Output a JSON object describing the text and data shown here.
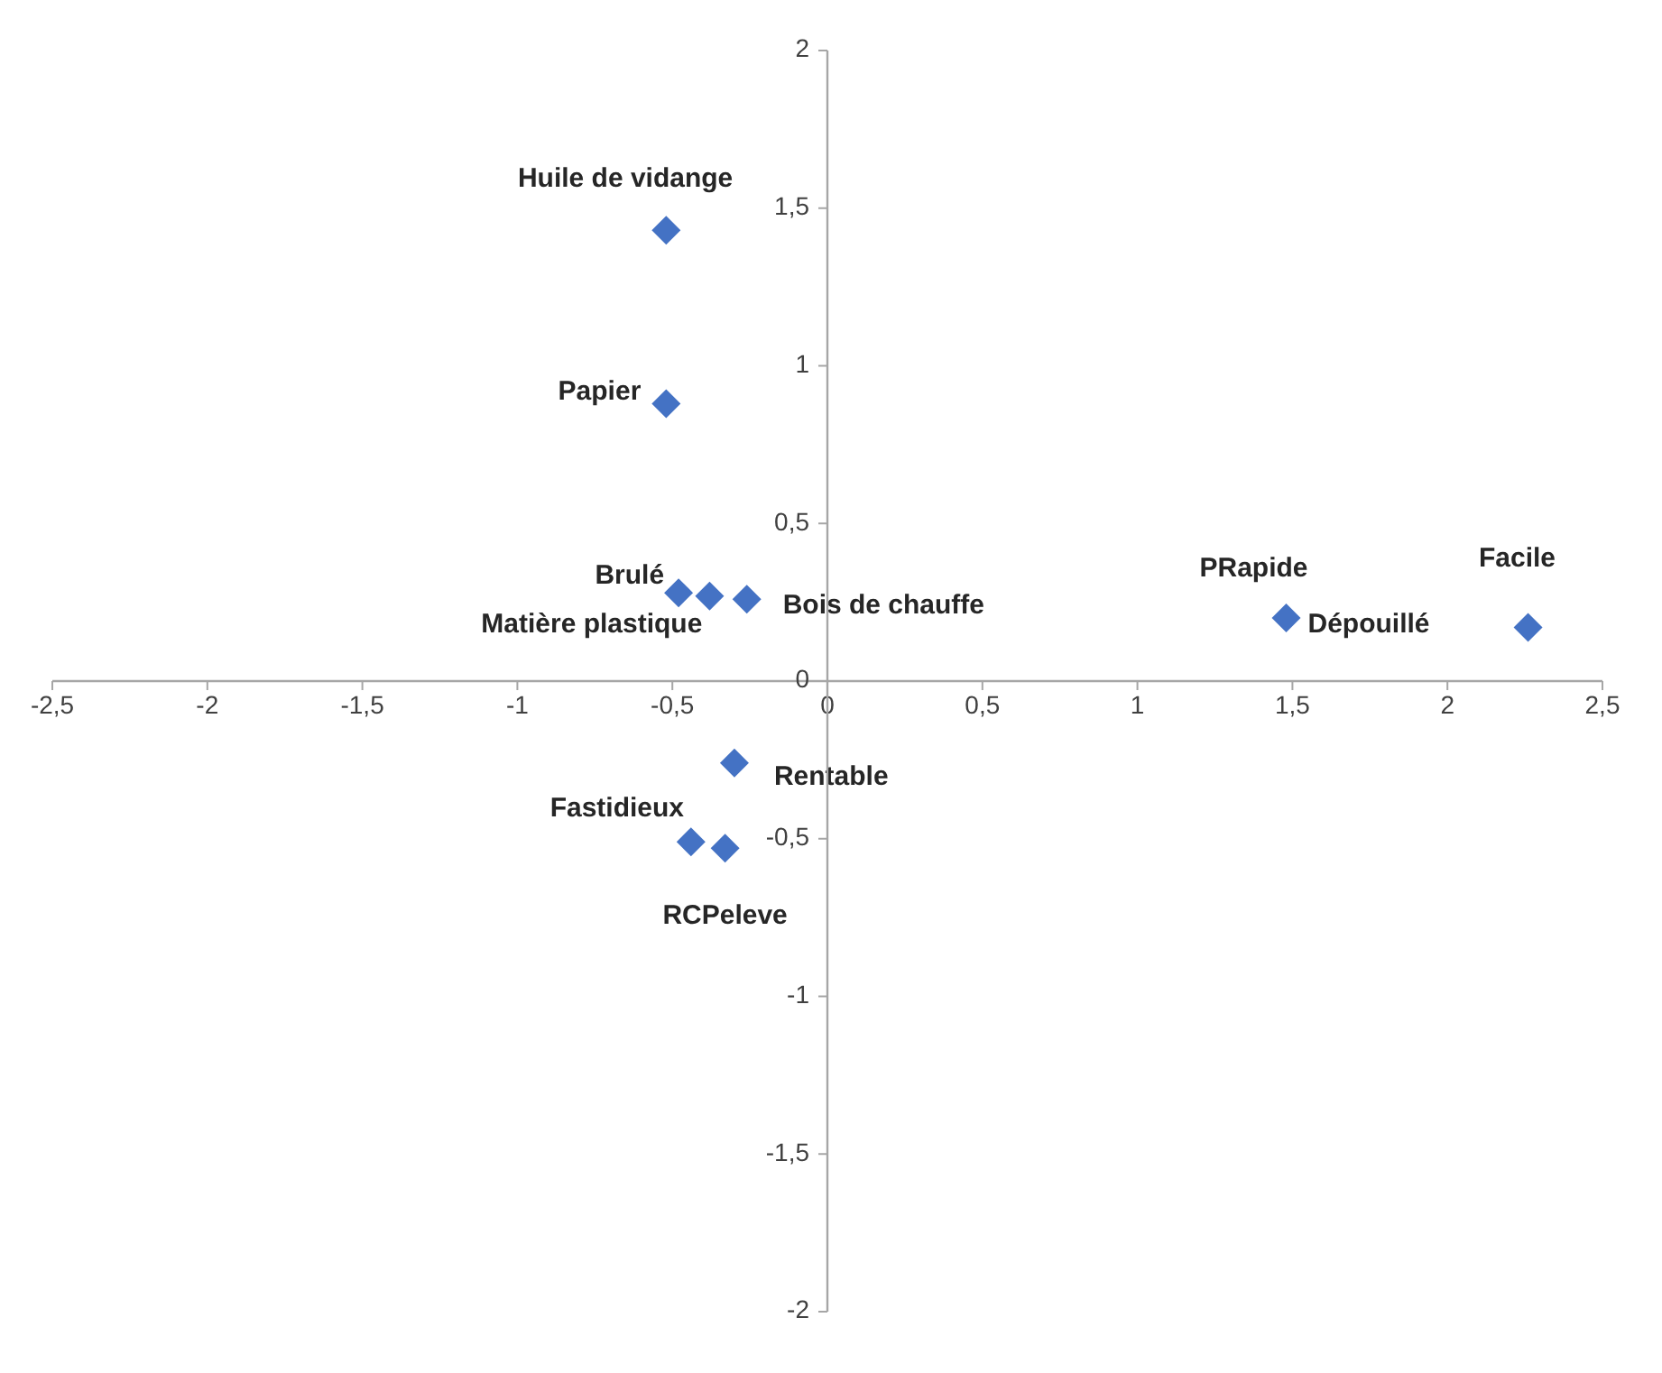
{
  "chart_data": {
    "type": "scatter",
    "x": [
      -0.52,
      -0.52,
      -0.48,
      -0.38,
      -0.26,
      1.48,
      2.26,
      -0.3,
      -0.44,
      -0.33
    ],
    "series": [
      {
        "color": "#4472c4",
        "values": [
          1.43,
          0.88,
          0.28,
          0.27,
          0.26,
          0.2,
          0.17,
          -0.26,
          -0.51,
          -0.53
        ]
      }
    ],
    "marker": "diamond",
    "xlim": [
      -2.5,
      2.5
    ],
    "xticks": [
      {
        "value": -2.5,
        "label": "-2,5"
      },
      -2,
      {
        "value": -1.5,
        "label": "-1,5"
      },
      -1,
      {
        "value": -0.5,
        "label": "-0,5"
      },
      0,
      {
        "value": 0.5,
        "label": "0,5"
      },
      1,
      {
        "value": 1.5,
        "label": "1,5"
      },
      2,
      {
        "value": 2.5,
        "label": "2,5"
      }
    ],
    "ylim": [
      -2,
      2
    ],
    "yticks": [
      -2,
      {
        "value": -1.5,
        "label": "-1,5"
      },
      -1,
      {
        "value": -0.5,
        "label": "-0,5"
      },
      0,
      {
        "value": 0.5,
        "label": "0,5"
      },
      1,
      {
        "value": 1.5,
        "label": "1,5"
      },
      2
    ],
    "grid": false,
    "legend": false,
    "annotations": [
      {
        "text": "Huile de vidange",
        "x": -0.52,
        "y": 1.43
      },
      {
        "text": "Papier",
        "x": -0.52,
        "y": 0.88
      },
      {
        "text": "Brulé",
        "x": -0.48,
        "y": 0.28
      },
      {
        "text": "Matière plastique",
        "x": -0.38,
        "y": 0.27
      },
      {
        "text": "Bois de chauffe",
        "x": -0.26,
        "y": 0.26
      },
      {
        "text": "PRapide",
        "x": 1.48,
        "y": 0.2
      },
      {
        "text": "Dépouillé",
        "x": 1.48,
        "y": 0.2
      },
      {
        "text": "Facile",
        "x": 2.26,
        "y": 0.17
      },
      {
        "text": "Rentable",
        "x": -0.3,
        "y": -0.26
      },
      {
        "text": "Fastidieux",
        "x": -0.44,
        "y": -0.51
      },
      {
        "text": "RCPeleve",
        "x": -0.33,
        "y": -0.53
      }
    ]
  }
}
